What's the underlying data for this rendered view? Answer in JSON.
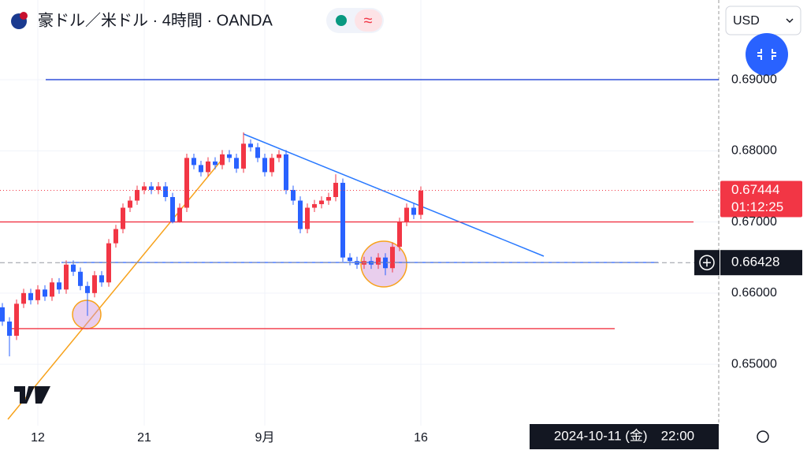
{
  "header": {
    "title": "豪ドル／米ドル · 4時間 · OANDA",
    "currency": "USD"
  },
  "chart_data": {
    "type": "candlestick",
    "x": [
      null,
      null,
      null,
      null,
      null,
      "12",
      null,
      null,
      null,
      null,
      null,
      null,
      null,
      null,
      null,
      null,
      null,
      null,
      null,
      null,
      "21",
      null,
      null,
      null,
      null,
      null,
      null,
      null,
      null,
      null,
      null,
      null,
      null,
      null,
      null,
      null,
      null,
      "9月",
      null,
      null,
      null,
      null,
      null,
      null,
      null,
      null,
      null,
      null,
      null,
      null,
      null,
      null,
      null,
      null,
      null,
      null,
      null,
      null,
      null,
      "16"
    ],
    "open": [
      0.658,
      0.656,
      0.654,
      0.6585,
      0.66,
      0.659,
      0.6605,
      0.6595,
      0.6615,
      0.6605,
      0.664,
      0.663,
      0.661,
      0.66,
      0.6625,
      0.6615,
      0.667,
      0.669,
      0.672,
      0.673,
      0.6745,
      0.675,
      0.6745,
      0.675,
      0.6735,
      0.67,
      0.672,
      0.679,
      0.678,
      0.677,
      0.6785,
      0.678,
      0.6795,
      0.679,
      0.6775,
      0.681,
      0.6805,
      0.679,
      0.677,
      0.679,
      0.6795,
      0.6745,
      0.673,
      0.669,
      0.672,
      0.6725,
      0.673,
      0.6735,
      0.6755,
      0.665,
      0.6645,
      0.664,
      0.6645,
      0.664,
      0.665,
      0.6635,
      0.6665,
      0.67,
      0.672,
      0.671
    ],
    "high": [
      0.6586,
      0.6566,
      0.6591,
      0.6606,
      0.6606,
      0.6611,
      0.6611,
      0.6621,
      0.6621,
      0.6646,
      0.6646,
      0.6636,
      0.6616,
      0.6631,
      0.6631,
      0.6676,
      0.6696,
      0.6726,
      0.6736,
      0.6751,
      0.6756,
      0.6756,
      0.6756,
      0.6756,
      0.6741,
      0.6726,
      0.6796,
      0.6796,
      0.6786,
      0.6791,
      0.6791,
      0.6801,
      0.6801,
      0.6796,
      0.6826,
      0.6816,
      0.6811,
      0.6796,
      0.6796,
      0.6801,
      0.6801,
      0.6751,
      0.6736,
      0.6726,
      0.6731,
      0.6736,
      0.6741,
      0.6767,
      0.6761,
      0.6656,
      0.6651,
      0.6651,
      0.6651,
      0.6656,
      0.6656,
      0.6671,
      0.6706,
      0.6726,
      0.6726,
      0.675
    ],
    "low": [
      0.6554,
      0.6511,
      0.6534,
      0.6579,
      0.6584,
      0.6584,
      0.6589,
      0.6589,
      0.6599,
      0.6599,
      0.6624,
      0.6604,
      0.6568,
      0.6594,
      0.6609,
      0.6609,
      0.6664,
      0.6684,
      0.6714,
      0.6724,
      0.6739,
      0.6739,
      0.6739,
      0.6729,
      0.6698,
      0.6699,
      0.6714,
      0.6774,
      0.6764,
      0.6764,
      0.6774,
      0.6774,
      0.6784,
      0.6769,
      0.6769,
      0.6799,
      0.6784,
      0.6764,
      0.6764,
      0.6784,
      0.6739,
      0.6724,
      0.6684,
      0.6684,
      0.6714,
      0.6719,
      0.6724,
      0.6729,
      0.6644,
      0.6639,
      0.6634,
      0.6634,
      0.6634,
      0.6634,
      0.6625,
      0.6629,
      0.6659,
      0.6694,
      0.6704,
      0.6704
    ],
    "close": [
      0.656,
      0.654,
      0.6585,
      0.66,
      0.659,
      0.6605,
      0.6595,
      0.6615,
      0.6605,
      0.664,
      0.663,
      0.661,
      0.66,
      0.6625,
      0.6615,
      0.667,
      0.669,
      0.672,
      0.673,
      0.6745,
      0.675,
      0.6745,
      0.675,
      0.6735,
      0.67,
      0.672,
      0.679,
      0.678,
      0.677,
      0.6785,
      0.678,
      0.6795,
      0.679,
      0.6775,
      0.681,
      0.6805,
      0.679,
      0.677,
      0.679,
      0.6795,
      0.6745,
      0.673,
      0.669,
      0.672,
      0.6725,
      0.673,
      0.6735,
      0.6755,
      0.665,
      0.6645,
      0.664,
      0.6645,
      0.664,
      0.665,
      0.6635,
      0.6665,
      0.67,
      0.672,
      0.671,
      0.6744
    ],
    "up_color": "#f23645",
    "down_color": "#2962ff",
    "ylim": [
      0.6412,
      0.7012
    ],
    "yticks": [
      {
        "value": 0.65,
        "label": "0.65000"
      },
      {
        "value": 0.66,
        "label": "0.66000"
      },
      {
        "value": 0.67,
        "label": "0.67000"
      },
      {
        "value": 0.68,
        "label": "0.68000"
      },
      {
        "value": 0.69,
        "label": "0.69000"
      }
    ],
    "grid": true,
    "levels": [
      {
        "value": 0.69,
        "color": "#1c3fd6"
      },
      {
        "value": 0.67,
        "color": "#f23645"
      },
      {
        "value": 0.6643,
        "color": "#2962ff"
      },
      {
        "value": 0.655,
        "color": "#f23645"
      }
    ],
    "last_price": {
      "value": 0.67444,
      "label": "0.67444",
      "countdown": "01:12:25",
      "color": "#f23645"
    },
    "crosshair": {
      "value": 0.66428,
      "label": "0.66428"
    },
    "crosshair_time": "2024-10-11 (金)　22:00"
  }
}
